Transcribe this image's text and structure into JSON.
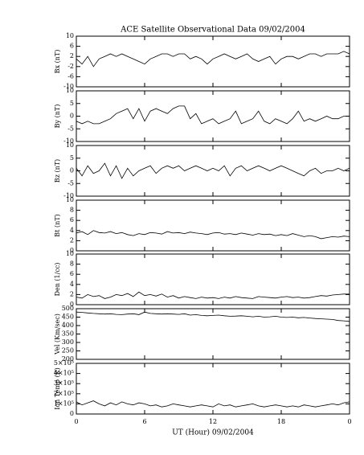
{
  "chart_data": [
    {
      "type": "line",
      "title": "ACE Satellite Observational Data   09/02/2004",
      "ylabel": "Bx (nT)",
      "x": [
        0,
        0.5,
        1,
        1.5,
        2,
        2.5,
        3,
        3.5,
        4,
        4.5,
        5,
        5.5,
        6,
        6.5,
        7,
        7.5,
        8,
        8.5,
        9,
        9.5,
        10,
        10.5,
        11,
        11.5,
        12,
        12.5,
        13,
        13.5,
        14,
        14.5,
        15,
        15.5,
        16,
        16.5,
        17,
        17.5,
        18,
        18.5,
        19,
        19.5,
        20,
        20.5,
        21,
        21.5,
        22,
        22.5,
        23,
        23.5,
        24
      ],
      "series": [
        {
          "color": "#000000",
          "values": [
            1,
            -1,
            2,
            -2,
            1,
            2,
            3,
            2,
            3,
            2,
            1,
            0,
            -1,
            1,
            2,
            3,
            3,
            2,
            3,
            3,
            1,
            2,
            1,
            -1,
            1,
            2,
            3,
            2,
            1,
            2,
            3,
            1,
            0,
            1,
            2,
            -1,
            1,
            2,
            2,
            1,
            2,
            3,
            3,
            2,
            3,
            3,
            3,
            4,
            3
          ]
        }
      ],
      "xlim": [
        0,
        24
      ],
      "xticks": [
        0,
        6,
        12,
        18,
        24
      ],
      "ylim": [
        -10,
        10
      ],
      "yticks": [
        -10,
        -6,
        -2,
        2,
        6,
        10
      ]
    },
    {
      "type": "line",
      "ylabel": "By (nT)",
      "x": [
        0,
        0.5,
        1,
        1.5,
        2,
        2.5,
        3,
        3.5,
        4,
        4.5,
        5,
        5.5,
        6,
        6.5,
        7,
        7.5,
        8,
        8.5,
        9,
        9.5,
        10,
        10.5,
        11,
        11.5,
        12,
        12.5,
        13,
        13.5,
        14,
        14.5,
        15,
        15.5,
        16,
        16.5,
        17,
        17.5,
        18,
        18.5,
        19,
        19.5,
        20,
        20.5,
        21,
        21.5,
        22,
        22.5,
        23,
        23.5,
        24
      ],
      "series": [
        {
          "color": "#000000",
          "values": [
            -2,
            -3,
            -2,
            -3,
            -3,
            -2,
            -1,
            1,
            2,
            3,
            -1,
            3,
            -2,
            2,
            3,
            2,
            1,
            3,
            4,
            4,
            -1,
            1,
            -3,
            -2,
            -1,
            -3,
            -2,
            -1,
            2,
            -3,
            -2,
            -1,
            2,
            -2,
            -3,
            -1,
            -2,
            -3,
            -1,
            2,
            -2,
            -1,
            -2,
            -1,
            0,
            -1,
            -1,
            0,
            0
          ]
        }
      ],
      "xlim": [
        0,
        24
      ],
      "xticks": [
        0,
        6,
        12,
        18,
        24
      ],
      "ylim": [
        -10,
        10
      ],
      "yticks": [
        -10,
        -5,
        0,
        5,
        10
      ]
    },
    {
      "type": "line",
      "ylabel": "Bz (nT)",
      "x": [
        0,
        0.5,
        1,
        1.5,
        2,
        2.5,
        3,
        3.5,
        4,
        4.5,
        5,
        5.5,
        6,
        6.5,
        7,
        7.5,
        8,
        8.5,
        9,
        9.5,
        10,
        10.5,
        11,
        11.5,
        12,
        12.5,
        13,
        13.5,
        14,
        14.5,
        15,
        15.5,
        16,
        16.5,
        17,
        17.5,
        18,
        18.5,
        19,
        19.5,
        20,
        20.5,
        21,
        21.5,
        22,
        22.5,
        23,
        23.5,
        24
      ],
      "series": [
        {
          "color": "#000000",
          "values": [
            1,
            -2,
            2,
            -1,
            0,
            3,
            -2,
            2,
            -3,
            1,
            -2,
            0,
            1,
            2,
            -1,
            1,
            2,
            1,
            2,
            0,
            1,
            2,
            1,
            0,
            1,
            0,
            2,
            -2,
            1,
            2,
            0,
            1,
            2,
            1,
            0,
            1,
            2,
            1,
            0,
            -1,
            -2,
            0,
            1,
            -1,
            0,
            0,
            1,
            0,
            1
          ]
        }
      ],
      "xlim": [
        0,
        24
      ],
      "xticks": [
        0,
        6,
        12,
        18,
        24
      ],
      "ylim": [
        -10,
        10
      ],
      "yticks": [
        -10,
        -5,
        0,
        5,
        10
      ]
    },
    {
      "type": "line",
      "ylabel": "Bt (nT)",
      "x": [
        0,
        0.5,
        1,
        1.5,
        2,
        2.5,
        3,
        3.5,
        4,
        4.5,
        5,
        5.5,
        6,
        6.5,
        7,
        7.5,
        8,
        8.5,
        9,
        9.5,
        10,
        10.5,
        11,
        11.5,
        12,
        12.5,
        13,
        13.5,
        14,
        14.5,
        15,
        15.5,
        16,
        16.5,
        17,
        17.5,
        18,
        18.5,
        19,
        19.5,
        20,
        20.5,
        21,
        21.5,
        22,
        22.5,
        23,
        23.5,
        24
      ],
      "series": [
        {
          "color": "#000000",
          "values": [
            3.5,
            3.8,
            3.2,
            4,
            3.6,
            3.5,
            3.8,
            3.4,
            3.6,
            3.2,
            3,
            3.4,
            3.2,
            3.6,
            3.5,
            3.3,
            3.8,
            3.5,
            3.6,
            3.4,
            3.7,
            3.5,
            3.4,
            3.2,
            3.5,
            3.6,
            3.3,
            3.4,
            3.2,
            3.5,
            3.3,
            3.1,
            3.4,
            3.2,
            3.3,
            3,
            3.2,
            3,
            3.4,
            3.1,
            2.8,
            3,
            2.8,
            2.4,
            2.6,
            2.8,
            2.7,
            2.9,
            2.8
          ]
        }
      ],
      "xlim": [
        0,
        24
      ],
      "xticks": [
        0,
        6,
        12,
        18,
        24
      ],
      "ylim": [
        0,
        10
      ],
      "yticks": [
        0,
        2,
        4,
        6,
        8,
        10
      ]
    },
    {
      "type": "line",
      "ylabel": "Den (1/cc)",
      "x": [
        0,
        0.5,
        1,
        1.5,
        2,
        2.5,
        3,
        3.5,
        4,
        4.5,
        5,
        5.5,
        6,
        6.5,
        7,
        7.5,
        8,
        8.5,
        9,
        9.5,
        10,
        10.5,
        11,
        11.5,
        12,
        12.5,
        13,
        13.5,
        14,
        14.5,
        15,
        15.5,
        16,
        16.5,
        17,
        17.5,
        18,
        18.5,
        19,
        19.5,
        20,
        20.5,
        21,
        21.5,
        22,
        22.5,
        23,
        23.5,
        24
      ],
      "series": [
        {
          "color": "#000000",
          "values": [
            1.5,
            1.3,
            2,
            1.6,
            1.8,
            1.2,
            1.5,
            2,
            1.8,
            2.2,
            1.6,
            2.5,
            1.8,
            2,
            1.7,
            2.1,
            1.5,
            1.8,
            1.3,
            1.6,
            1.4,
            1.2,
            1.5,
            1.3,
            1.4,
            1.2,
            1.5,
            1.3,
            1.6,
            1.4,
            1.3,
            1.2,
            1.6,
            1.5,
            1.4,
            1.3,
            1.5,
            1.6,
            1.4,
            1.5,
            1.3,
            1.4,
            1.6,
            1.8,
            1.7,
            1.9,
            2,
            2.1,
            2.1
          ]
        }
      ],
      "xlim": [
        0,
        24
      ],
      "xticks": [
        0,
        6,
        12,
        18,
        24
      ],
      "ylim": [
        0,
        10
      ],
      "yticks": [
        0,
        2,
        4,
        6,
        8,
        10
      ]
    },
    {
      "type": "line",
      "ylabel": "Vel (Km/sec)",
      "x": [
        0,
        0.5,
        1,
        1.5,
        2,
        2.5,
        3,
        3.5,
        4,
        4.5,
        5,
        5.5,
        6,
        6.5,
        7,
        7.5,
        8,
        8.5,
        9,
        9.5,
        10,
        10.5,
        11,
        11.5,
        12,
        12.5,
        13,
        13.5,
        14,
        14.5,
        15,
        15.5,
        16,
        16.5,
        17,
        17.5,
        18,
        18.5,
        19,
        19.5,
        20,
        20.5,
        21,
        21.5,
        22,
        22.5,
        23,
        23.5,
        24
      ],
      "series": [
        {
          "color": "#000000",
          "values": [
            480,
            478,
            475,
            472,
            470,
            468,
            470,
            466,
            465,
            468,
            470,
            465,
            480,
            472,
            470,
            468,
            470,
            468,
            466,
            470,
            462,
            465,
            460,
            458,
            460,
            462,
            458,
            455,
            456,
            458,
            455,
            452,
            455,
            450,
            452,
            455,
            450,
            448,
            450,
            446,
            448,
            445,
            442,
            440,
            438,
            436,
            430,
            428,
            425
          ]
        }
      ],
      "xlim": [
        0,
        24
      ],
      "xticks": [
        0,
        6,
        12,
        18,
        24
      ],
      "ylim": [
        200,
        500
      ],
      "yticks": [
        200,
        250,
        300,
        350,
        400,
        450,
        500
      ]
    },
    {
      "type": "line",
      "ylabel": "Ion Temp (K)",
      "xlabel": "UT (Hour)  09/02/2004",
      "x": [
        0,
        0.5,
        1,
        1.5,
        2,
        2.5,
        3,
        3.5,
        4,
        4.5,
        5,
        5.5,
        6,
        6.5,
        7,
        7.5,
        8,
        8.5,
        9,
        9.5,
        10,
        10.5,
        11,
        11.5,
        12,
        12.5,
        13,
        13.5,
        14,
        14.5,
        15,
        15.5,
        16,
        16.5,
        17,
        17.5,
        18,
        18.5,
        19,
        19.5,
        20,
        20.5,
        21,
        21.5,
        22,
        22.5,
        23,
        23.5,
        24
      ],
      "series": [
        {
          "color": "#000000",
          "values": [
            120000,
            90000,
            110000,
            130000,
            100000,
            80000,
            110000,
            90000,
            120000,
            100000,
            90000,
            110000,
            100000,
            80000,
            90000,
            70000,
            80000,
            100000,
            90000,
            80000,
            70000,
            80000,
            90000,
            80000,
            70000,
            100000,
            80000,
            90000,
            70000,
            80000,
            90000,
            100000,
            80000,
            70000,
            80000,
            90000,
            80000,
            70000,
            80000,
            70000,
            90000,
            80000,
            70000,
            80000,
            90000,
            100000,
            90000,
            110000,
            120000
          ]
        }
      ],
      "xlim": [
        0,
        24
      ],
      "xticks": [
        0,
        6,
        12,
        18,
        {
          "value": 24,
          "label": "0"
        }
      ],
      "ylim": [
        0,
        500000
      ],
      "yticks": [
        0,
        {
          "value": 100000,
          "label": "1×10⁵"
        },
        {
          "value": 200000,
          "label": "2×10⁵"
        },
        {
          "value": 300000,
          "label": "3×10⁵"
        },
        {
          "value": 400000,
          "label": "4×10⁵"
        },
        {
          "value": 500000,
          "label": "5×10⁵"
        }
      ]
    }
  ]
}
